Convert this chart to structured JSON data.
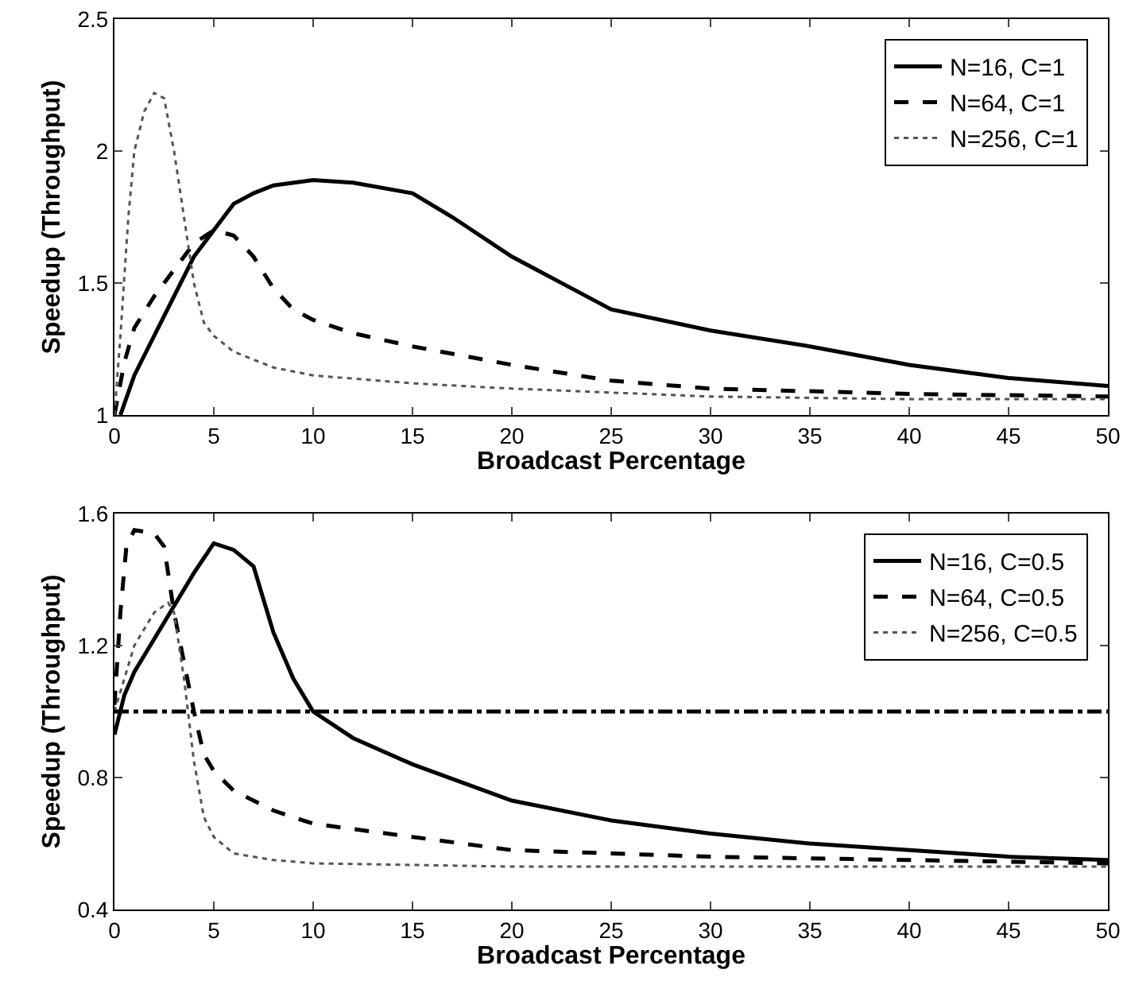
{
  "chart_data": [
    {
      "type": "line",
      "xlabel": "Broadcast Percentage",
      "ylabel": "Speedup (Throughput)",
      "xlim": [
        0,
        50
      ],
      "ylim": [
        1,
        2.5
      ],
      "xticks": [
        0,
        5,
        10,
        15,
        20,
        25,
        30,
        35,
        40,
        45,
        50
      ],
      "yticks": [
        1,
        1.5,
        2,
        2.5
      ],
      "grid": false,
      "legend": "top right",
      "marker": "none",
      "series": [
        {
          "name": "N=16, C=1",
          "color": "#000000",
          "line_style": "solid",
          "x": [
            0.3,
            1,
            2,
            3,
            4,
            5,
            6,
            7,
            8,
            10,
            12,
            15,
            17,
            20,
            23,
            25,
            30,
            35,
            40,
            45,
            50
          ],
          "values": [
            1.0,
            1.15,
            1.3,
            1.45,
            1.6,
            1.7,
            1.8,
            1.84,
            1.87,
            1.89,
            1.88,
            1.84,
            1.75,
            1.6,
            1.48,
            1.4,
            1.32,
            1.26,
            1.19,
            1.14,
            1.11
          ]
        },
        {
          "name": "N=64, C=1",
          "color": "#000000",
          "line_style": "dashed",
          "x": [
            0,
            0.5,
            1,
            2,
            3,
            4,
            5,
            6,
            7,
            8,
            9,
            10,
            12,
            15,
            20,
            25,
            30,
            40,
            50
          ],
          "values": [
            1.0,
            1.2,
            1.33,
            1.45,
            1.55,
            1.65,
            1.7,
            1.68,
            1.6,
            1.48,
            1.4,
            1.36,
            1.31,
            1.26,
            1.19,
            1.13,
            1.1,
            1.08,
            1.07
          ]
        },
        {
          "name": "N=256, C=1",
          "color": "#555555",
          "line_style": "dotted",
          "x": [
            0,
            0.3,
            0.7,
            1,
            1.5,
            2,
            2.5,
            3,
            3.5,
            4,
            4.5,
            5,
            6,
            8,
            10,
            15,
            20,
            30,
            40,
            50
          ],
          "values": [
            1.0,
            1.3,
            1.75,
            2.0,
            2.15,
            2.22,
            2.2,
            2.0,
            1.75,
            1.5,
            1.35,
            1.3,
            1.24,
            1.18,
            1.15,
            1.12,
            1.1,
            1.07,
            1.06,
            1.06
          ]
        }
      ]
    },
    {
      "type": "line",
      "xlabel": "Broadcast Percentage",
      "ylabel": "Speedup (Throughput)",
      "xlim": [
        0,
        50
      ],
      "ylim": [
        0.4,
        1.6
      ],
      "xticks": [
        0,
        5,
        10,
        15,
        20,
        25,
        30,
        35,
        40,
        45,
        50
      ],
      "yticks": [
        0.4,
        0.8,
        1.2,
        1.6
      ],
      "grid": false,
      "legend": "top right",
      "marker": "none",
      "ref_lines": [
        {
          "axis": "y",
          "value": 1,
          "color": "#000000",
          "line_style": "dashdot"
        }
      ],
      "series": [
        {
          "name": "N=16, C=0.5",
          "color": "#000000",
          "line_style": "solid",
          "x": [
            0,
            0.5,
            1,
            2,
            3,
            4,
            5,
            6,
            7,
            8,
            9,
            10,
            12,
            15,
            20,
            25,
            30,
            35,
            40,
            45,
            50
          ],
          "values": [
            0.93,
            1.05,
            1.12,
            1.22,
            1.32,
            1.42,
            1.51,
            1.49,
            1.44,
            1.24,
            1.1,
            1.0,
            0.92,
            0.84,
            0.73,
            0.67,
            0.63,
            0.6,
            0.58,
            0.56,
            0.55
          ]
        },
        {
          "name": "N=64, C=0.5",
          "color": "#000000",
          "line_style": "dashed",
          "x": [
            0,
            0.3,
            0.6,
            1,
            2,
            2.5,
            3,
            3.5,
            4,
            4.5,
            5,
            6,
            8,
            10,
            15,
            20,
            30,
            40,
            50
          ],
          "values": [
            1.02,
            1.3,
            1.5,
            1.55,
            1.54,
            1.5,
            1.3,
            1.15,
            1.0,
            0.87,
            0.82,
            0.76,
            0.7,
            0.66,
            0.62,
            0.58,
            0.56,
            0.55,
            0.54
          ]
        },
        {
          "name": "N=256, C=0.5",
          "color": "#555555",
          "line_style": "dotted",
          "x": [
            0,
            0.5,
            1,
            2,
            2.7,
            3,
            3.5,
            4,
            4.5,
            5,
            6,
            8,
            10,
            20,
            50
          ],
          "values": [
            1.0,
            1.1,
            1.2,
            1.3,
            1.33,
            1.3,
            1.1,
            0.85,
            0.68,
            0.62,
            0.57,
            0.55,
            0.54,
            0.53,
            0.53
          ]
        }
      ]
    }
  ]
}
